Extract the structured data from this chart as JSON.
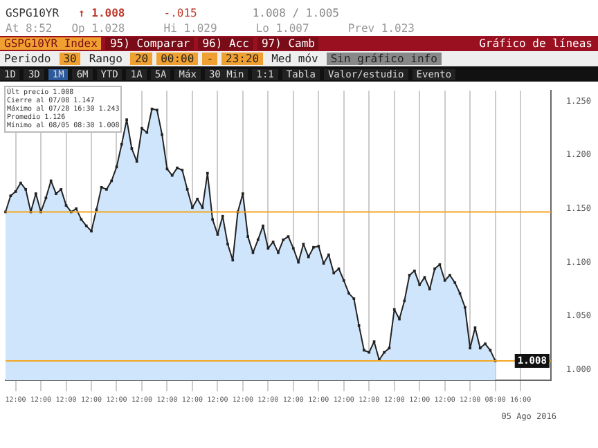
{
  "chart_data": {
    "type": "area",
    "title": "GSPG10YR",
    "subtitle": "Gráfico de líneas",
    "annotations": [
      "↑ 1.008",
      "-.015",
      "1.008 / 1.005",
      "At 8:52",
      "Op 1.028",
      "Hi 1.029",
      "Lo 1.007",
      "Prev 1.023",
      "GSPG10YR Index",
      "95) Comparar",
      "96) Acc",
      "97) Camb",
      "Periodo",
      "30",
      "Rango",
      "20",
      "00:00",
      "-",
      "23:20",
      "Med móv",
      "Sin gráfico info",
      "1D",
      "3D",
      "1M",
      "6M",
      "YTD",
      "1A",
      "5A",
      "Máx",
      "30 Min",
      "1:1",
      "Tabla",
      "Valor/estudio",
      "Evento",
      "Últ precio 1.008",
      "Cierre al 07/08 1.147",
      "Máximo al 07/28 16:30 1.243",
      "Promedio 1.126",
      "Mínimo al 08/05 08:30 1.008",
      "05 Ago 2016"
    ],
    "categories": [
      null,
      null,
      "12:00",
      null,
      null,
      null,
      null,
      "12:00",
      null,
      null,
      null,
      null,
      "12:00",
      null,
      null,
      null,
      null,
      "12:00",
      null,
      null,
      null,
      null,
      "12:00",
      null,
      null,
      null,
      null,
      "12:00",
      null,
      null,
      null,
      null,
      "12:00",
      null,
      null,
      null,
      null,
      "12:00",
      null,
      null,
      null,
      null,
      "12:00",
      null,
      null,
      null,
      null,
      "12:00",
      null,
      null,
      null,
      null,
      "12:00",
      null,
      null,
      null,
      null,
      "12:00",
      null,
      null,
      null,
      null,
      "12:00",
      null,
      null,
      null,
      null,
      "12:00",
      null,
      null,
      null,
      null,
      "12:00",
      null,
      null,
      null,
      null,
      "12:00",
      null,
      null,
      null,
      null,
      "12:00",
      null,
      null,
      null,
      null,
      "12:00",
      null,
      null,
      null,
      null,
      "12:00",
      null,
      null,
      null,
      null,
      "08:00",
      null,
      null,
      null,
      null,
      "16:00",
      null,
      null,
      null,
      null,
      null,
      null
    ],
    "series": [
      {
        "color": "#222222",
        "values": [
          1.147,
          1.162,
          1.166,
          1.174,
          1.168,
          1.147,
          1.164,
          1.147,
          1.16,
          1.176,
          1.164,
          1.168,
          1.153,
          1.147,
          1.15,
          1.14,
          1.134,
          1.129,
          1.149,
          1.17,
          1.168,
          1.176,
          1.189,
          1.21,
          1.233,
          1.206,
          1.194,
          1.225,
          1.221,
          1.243,
          1.242,
          1.219,
          1.187,
          1.181,
          1.188,
          1.186,
          1.168,
          1.151,
          1.159,
          1.151,
          1.183,
          1.14,
          1.126,
          1.143,
          1.117,
          1.102,
          1.147,
          1.164,
          1.124,
          1.109,
          1.121,
          1.134,
          1.113,
          1.119,
          1.109,
          1.121,
          1.124,
          1.113,
          1.1,
          1.117,
          1.105,
          1.114,
          1.115,
          1.099,
          1.107,
          1.09,
          1.094,
          1.083,
          1.071,
          1.066,
          1.041,
          1.018,
          1.016,
          1.026,
          1.009,
          1.016,
          1.02,
          1.056,
          1.047,
          1.064,
          1.088,
          1.092,
          1.079,
          1.086,
          1.075,
          1.094,
          1.098,
          1.083,
          1.088,
          1.081,
          1.071,
          1.058,
          1.02,
          1.039,
          1.02,
          1.024,
          1.018,
          1.008,
          null,
          null,
          null,
          null,
          null,
          null,
          null,
          null,
          null,
          null,
          null
        ]
      }
    ],
    "ylim": [
      0.99,
      1.26
    ],
    "yticks": [
      {
        "value": 1,
        "label": "1.000"
      },
      {
        "value": 1.05,
        "label": "1.050"
      },
      {
        "value": 1.1,
        "label": "1.100"
      },
      {
        "value": 1.15,
        "label": "1.150"
      },
      {
        "value": 1.2,
        "label": "1.200"
      },
      {
        "value": 1.25,
        "label": "1.250"
      }
    ],
    "ref_lines": [
      {
        "axis": "y",
        "value": 1.147,
        "color": "#f5a623"
      },
      {
        "axis": "y",
        "value": 1.008,
        "label": "1.008",
        "color": "#f5a623"
      }
    ],
    "grid": "x",
    "legend": false,
    "marker": "square",
    "line_style": "solid"
  }
}
